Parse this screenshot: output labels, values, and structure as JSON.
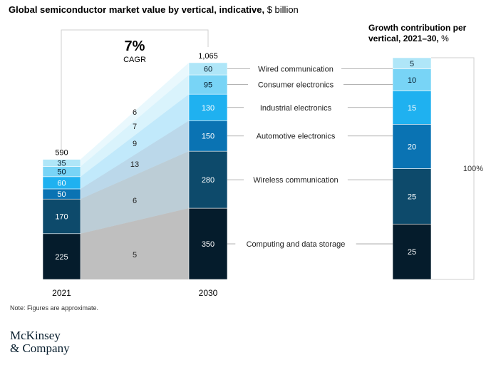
{
  "chart_data": [
    {
      "type": "bar",
      "title": "Global semiconductor market value by vertical, indicative,",
      "unit": "$ billion",
      "categories": [
        "2021",
        "2030"
      ],
      "totals": [
        590,
        1065
      ],
      "cagr": {
        "value": "7%",
        "label": "CAGR"
      },
      "series": [
        {
          "name": "Computing and data storage",
          "values": [
            225,
            350
          ],
          "cagr": "5",
          "color": "#051c2c"
        },
        {
          "name": "Wireless communication",
          "values": [
            170,
            280
          ],
          "cagr": "6",
          "color": "#0d4a6b"
        },
        {
          "name": "Automotive electronics",
          "values": [
            50,
            150
          ],
          "cagr": "13",
          "color": "#0a73b3"
        },
        {
          "name": "Industrial electronics",
          "values": [
            60,
            130
          ],
          "cagr": "9",
          "color": "#1fb1f0"
        },
        {
          "name": "Consumer electronics",
          "values": [
            50,
            95
          ],
          "cagr": "7",
          "color": "#78d4f6"
        },
        {
          "name": "Wired communication",
          "values": [
            35,
            60
          ],
          "cagr": "6",
          "color": "#afe6f8"
        }
      ]
    },
    {
      "type": "bar",
      "title": "Growth contribution per vertical, 2021–30,",
      "unit": "%",
      "values": [
        25,
        25,
        20,
        15,
        10,
        5
      ],
      "total_label": "100%"
    }
  ],
  "note": "Note: Figures are approximate.",
  "logo": {
    "line1": "McKinsey",
    "line2": "& Company"
  }
}
